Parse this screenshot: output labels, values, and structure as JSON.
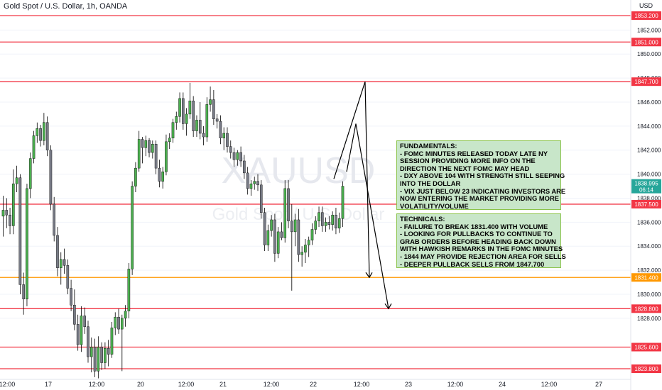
{
  "header": {
    "title": "Gold Spot / U.S. Dollar, 1h, OANDA"
  },
  "price_axis": {
    "currency": "USD",
    "last_price": "1838.995",
    "countdown": "06:14"
  },
  "watermark": {
    "symbol": "XAUUSD",
    "name": "Gold Spot / U.S. Dollar"
  },
  "notes": {
    "fundamentals": "FUNDAMENTALS:\n- FOMC MINUTES RELEASED TODAY LATE NY\nSESSION PROVIDING MORE INFO ON THE\nDIRECTION THE NEXT FOMC MAY HEAD\n- DXY ABOVE 104 WITH STRENGTH STILL SEEPING\nINTO THE DOLLAR\n- VIX JUST BELOW 23 INDICATING INVESTORS ARE\nNOW ENTERING THE MARKET PROVIDING MORE\nVOLATILITY/VOLUME",
    "technicals": "TECHNICALS:\n- FAILURE TO BREAK 1831.400 WITH VOLUME\n- LOOKING FOR PULLBACKS TO CONTINUE TO\nGRAB ORDERS BEFORE HEADING BACK DOWN\nWITH HAWKISH REMARKS IN THE FOMC MINUTES\n- 1844 MAY PROVIDE REJECTION AREA FOR SELLS\n- DEEPER PULLBACK SELLS FROM 1847.700"
  },
  "colors": {
    "up": "#4caf50",
    "down": "#787b86",
    "level": "#f23645",
    "key_level": "#ff9800",
    "price_label": "#26a69a",
    "note_bg": "#c8e6c9"
  },
  "chart_data": {
    "type": "candlestick",
    "title": "Gold Spot / U.S. Dollar, 1h, OANDA",
    "y_unit": "USD",
    "ylim": [
      1822.5,
      1854.0
    ],
    "y_ticks": [
      1828,
      1830,
      1832,
      1834,
      1836,
      1838,
      1840,
      1842,
      1844,
      1846,
      1848,
      1850,
      1852
    ],
    "x_tick_labels": [
      "12:00",
      "17",
      "12:00",
      "20",
      "12:00",
      "21",
      "12:00",
      "22",
      "12:00",
      "23",
      "12:00",
      "24",
      "12:00",
      "27"
    ],
    "horizontal_levels": [
      {
        "price": 1853.2,
        "label": "1853.200",
        "color": "red"
      },
      {
        "price": 1851.0,
        "label": "1851.000",
        "color": "red"
      },
      {
        "price": 1847.7,
        "label": "1847.700",
        "color": "red"
      },
      {
        "price": 1837.5,
        "label": "1837.500",
        "color": "red"
      },
      {
        "price": 1831.4,
        "label": "1831.400",
        "color": "orange"
      },
      {
        "price": 1828.8,
        "label": "1828.800",
        "color": "red"
      },
      {
        "price": 1825.6,
        "label": "1825.600",
        "color": "red"
      },
      {
        "price": 1823.8,
        "label": "1823.800",
        "color": "red"
      }
    ],
    "candles_ohlc": [
      [
        1836.5,
        1838.2,
        1834.8,
        1837.0
      ],
      [
        1837.0,
        1838.0,
        1835.5,
        1836.6
      ],
      [
        1836.6,
        1837.2,
        1835.0,
        1835.7
      ],
      [
        1835.7,
        1840.4,
        1835.0,
        1839.2
      ],
      [
        1839.2,
        1840.7,
        1838.5,
        1839.7
      ],
      [
        1839.7,
        1840.0,
        1830.0,
        1830.8
      ],
      [
        1830.8,
        1831.8,
        1828.3,
        1829.6
      ],
      [
        1829.6,
        1839.2,
        1829.0,
        1838.8
      ],
      [
        1838.8,
        1841.8,
        1838.0,
        1841.3
      ],
      [
        1841.3,
        1843.6,
        1840.9,
        1843.2
      ],
      [
        1843.2,
        1844.3,
        1842.6,
        1843.8
      ],
      [
        1843.8,
        1844.1,
        1842.3,
        1842.8
      ],
      [
        1842.8,
        1845.1,
        1842.4,
        1844.3
      ],
      [
        1844.3,
        1844.8,
        1841.5,
        1842.0
      ],
      [
        1842.0,
        1842.4,
        1837.0,
        1837.5
      ],
      [
        1837.5,
        1838.1,
        1834.4,
        1834.9
      ],
      [
        1834.9,
        1835.6,
        1831.5,
        1832.2
      ],
      [
        1832.2,
        1833.5,
        1830.8,
        1832.9
      ],
      [
        1832.9,
        1833.8,
        1831.7,
        1832.4
      ],
      [
        1832.4,
        1832.9,
        1830.0,
        1830.5
      ],
      [
        1830.5,
        1831.2,
        1828.6,
        1829.1
      ],
      [
        1829.1,
        1830.4,
        1827.0,
        1827.5
      ],
      [
        1827.5,
        1828.3,
        1825.3,
        1825.8
      ],
      [
        1825.8,
        1829.0,
        1825.2,
        1828.2
      ],
      [
        1828.2,
        1828.9,
        1826.7,
        1827.3
      ],
      [
        1827.3,
        1827.8,
        1824.3,
        1824.8
      ],
      [
        1824.8,
        1826.4,
        1823.5,
        1825.6
      ],
      [
        1825.6,
        1826.3,
        1823.1,
        1823.6
      ],
      [
        1823.6,
        1826.5,
        1823.0,
        1825.6
      ],
      [
        1825.6,
        1826.0,
        1823.7,
        1824.3
      ],
      [
        1824.3,
        1826.0,
        1823.8,
        1825.5
      ],
      [
        1825.5,
        1826.2,
        1824.0,
        1825.0
      ],
      [
        1825.0,
        1827.7,
        1824.7,
        1827.2
      ],
      [
        1827.2,
        1828.5,
        1826.6,
        1828.1
      ],
      [
        1828.1,
        1828.8,
        1826.7,
        1827.1
      ],
      [
        1827.1,
        1828.3,
        1823.6,
        1828.0
      ],
      [
        1828.0,
        1829.1,
        1827.3,
        1828.6
      ],
      [
        1828.6,
        1832.6,
        1828.0,
        1832.1
      ],
      [
        1832.1,
        1839.4,
        1831.6,
        1839.0
      ],
      [
        1839.0,
        1841.0,
        1838.5,
        1840.5
      ],
      [
        1840.5,
        1843.6,
        1840.2,
        1842.9
      ],
      [
        1842.9,
        1843.1,
        1840.9,
        1842.2
      ],
      [
        1842.2,
        1843.2,
        1841.5,
        1842.8
      ],
      [
        1842.8,
        1843.0,
        1841.4,
        1841.8
      ],
      [
        1841.8,
        1842.8,
        1841.3,
        1842.5
      ],
      [
        1842.5,
        1842.8,
        1840.0,
        1840.5
      ],
      [
        1840.5,
        1841.2,
        1838.9,
        1839.4
      ],
      [
        1839.4,
        1840.6,
        1838.8,
        1840.2
      ],
      [
        1840.2,
        1843.3,
        1839.9,
        1842.7
      ],
      [
        1842.7,
        1843.4,
        1842.1,
        1843.0
      ],
      [
        1843.0,
        1844.6,
        1842.6,
        1844.3
      ],
      [
        1844.3,
        1845.2,
        1843.7,
        1844.8
      ],
      [
        1844.8,
        1846.8,
        1844.3,
        1846.3
      ],
      [
        1846.3,
        1846.8,
        1843.7,
        1844.2
      ],
      [
        1844.2,
        1845.5,
        1843.2,
        1845.0
      ],
      [
        1845.0,
        1847.6,
        1844.6,
        1846.1
      ],
      [
        1846.1,
        1846.5,
        1843.1,
        1843.6
      ],
      [
        1843.6,
        1844.9,
        1843.1,
        1844.5
      ],
      [
        1844.5,
        1846.0,
        1842.9,
        1843.4
      ],
      [
        1843.4,
        1844.0,
        1842.4,
        1843.1
      ],
      [
        1843.1,
        1846.4,
        1842.7,
        1845.8
      ],
      [
        1845.8,
        1847.3,
        1845.2,
        1846.2
      ],
      [
        1846.2,
        1847.0,
        1844.1,
        1844.6
      ],
      [
        1844.6,
        1845.0,
        1843.8,
        1844.4
      ],
      [
        1844.4,
        1844.9,
        1842.5,
        1843.0
      ],
      [
        1843.0,
        1843.9,
        1842.0,
        1843.4
      ],
      [
        1843.4,
        1843.9,
        1841.8,
        1842.3
      ],
      [
        1842.3,
        1842.8,
        1841.3,
        1841.8
      ],
      [
        1841.8,
        1842.2,
        1840.6,
        1841.2
      ],
      [
        1841.2,
        1842.0,
        1840.7,
        1841.8
      ],
      [
        1841.8,
        1842.3,
        1840.6,
        1841.1
      ],
      [
        1841.1,
        1841.6,
        1839.6,
        1840.1
      ],
      [
        1840.1,
        1840.6,
        1838.3,
        1838.8
      ],
      [
        1838.8,
        1839.5,
        1838.2,
        1839.2
      ],
      [
        1839.2,
        1839.8,
        1838.7,
        1839.4
      ],
      [
        1839.4,
        1840.0,
        1838.6,
        1839.1
      ],
      [
        1839.1,
        1839.5,
        1836.3,
        1836.8
      ],
      [
        1836.8,
        1837.2,
        1833.6,
        1834.1
      ],
      [
        1834.1,
        1835.8,
        1833.6,
        1835.3
      ],
      [
        1835.3,
        1836.6,
        1834.8,
        1836.2
      ],
      [
        1836.2,
        1836.7,
        1832.7,
        1833.4
      ],
      [
        1833.4,
        1835.6,
        1833.0,
        1835.2
      ],
      [
        1835.2,
        1836.0,
        1834.5,
        1834.7
      ],
      [
        1834.7,
        1839.5,
        1834.3,
        1838.8
      ],
      [
        1838.8,
        1839.5,
        1835.5,
        1836.1
      ],
      [
        1836.1,
        1837.5,
        1830.3,
        1835.2
      ],
      [
        1835.2,
        1836.7,
        1834.0,
        1836.2
      ],
      [
        1836.2,
        1837.1,
        1832.7,
        1833.3
      ],
      [
        1833.3,
        1834.0,
        1832.3,
        1833.5
      ],
      [
        1833.5,
        1834.6,
        1832.6,
        1834.1
      ],
      [
        1834.1,
        1834.8,
        1833.1,
        1834.5
      ],
      [
        1834.5,
        1835.9,
        1834.1,
        1835.4
      ],
      [
        1835.4,
        1836.5,
        1835.0,
        1836.1
      ],
      [
        1836.1,
        1837.3,
        1835.6,
        1836.8
      ],
      [
        1836.8,
        1837.3,
        1835.2,
        1835.7
      ],
      [
        1835.7,
        1836.4,
        1835.2,
        1836.0
      ],
      [
        1836.0,
        1836.5,
        1835.4,
        1835.8
      ],
      [
        1835.8,
        1836.9,
        1835.3,
        1836.6
      ],
      [
        1836.6,
        1837.2,
        1835.0,
        1835.5
      ],
      [
        1835.5,
        1836.8,
        1835.1,
        1836.3
      ],
      [
        1836.3,
        1839.4,
        1835.6,
        1839.0
      ]
    ],
    "projection_arrows": [
      {
        "points": [
          [
            1839.6
          ],
          [
            1847.7
          ],
          [
            1831.4
          ]
        ]
      },
      {
        "points": [
          [
            1840.2
          ],
          [
            1844.2
          ],
          [
            1828.8
          ]
        ]
      }
    ]
  }
}
